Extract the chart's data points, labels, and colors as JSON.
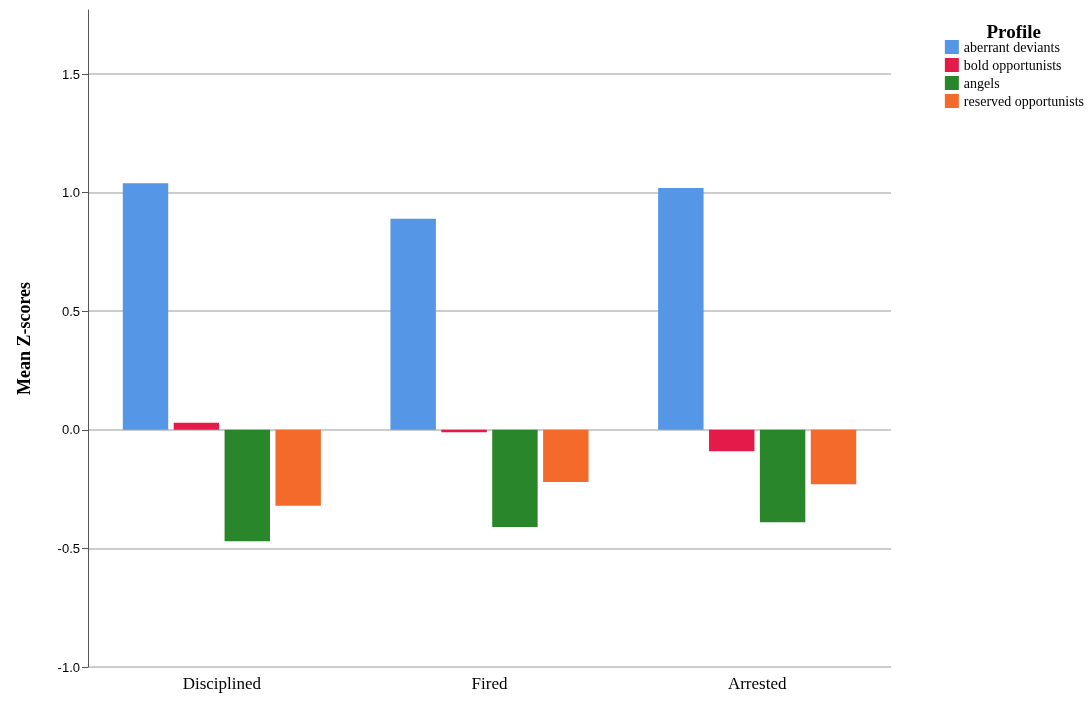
{
  "chart_data": {
    "type": "bar",
    "ylabel": "Mean Z-scores",
    "legend_title": "Profile",
    "categories": [
      "Disciplined",
      "Fired",
      "Arrested"
    ],
    "series": [
      {
        "name": "aberrant deviants",
        "color": "#5596e6",
        "values": [
          1.04,
          0.89,
          1.02
        ]
      },
      {
        "name": "bold opportunists",
        "color": "#e41a4a",
        "values": [
          0.03,
          -0.01,
          -0.09
        ]
      },
      {
        "name": "angels",
        "color": "#2a862a",
        "values": [
          -0.47,
          -0.41,
          -0.39
        ]
      },
      {
        "name": "reserved opportunists",
        "color": "#f46a2a",
        "values": [
          -0.32,
          -0.22,
          -0.23
        ]
      }
    ],
    "ylim": [
      -1,
      1.77
    ],
    "yticks": [
      {
        "value": -1,
        "label": "-1.0"
      },
      -0.5,
      {
        "value": 0,
        "label": "0.0"
      },
      0.5,
      {
        "value": 1,
        "label": "1.0"
      },
      1.5
    ],
    "grid": "y",
    "legend": "top right"
  }
}
